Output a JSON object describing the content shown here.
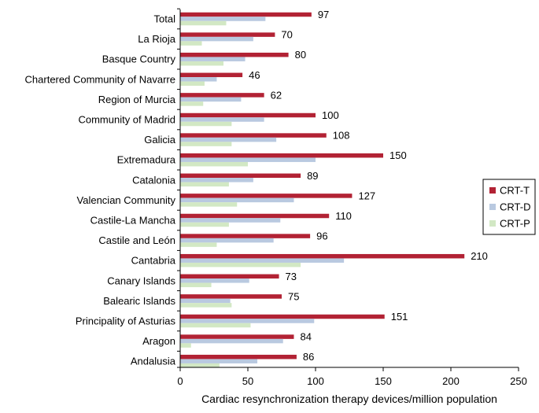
{
  "chart_data": {
    "type": "bar",
    "orientation": "horizontal",
    "categories": [
      "Total",
      "La Rioja",
      "Basque Country",
      "Chartered Community of Navarre",
      "Region of Murcia",
      "Community of Madrid",
      "Galicia",
      "Extremadura",
      "Catalonia",
      "Valencian Community",
      "Castile-La Mancha",
      "Castile and León",
      "Cantabria",
      "Canary Islands",
      "Balearic Islands",
      "Principality of Asturias",
      "Aragon",
      "Andalusia"
    ],
    "series": [
      {
        "name": "CRT-T",
        "color": "#b22234",
        "values": [
          97,
          70,
          80,
          46,
          62,
          100,
          108,
          150,
          89,
          127,
          110,
          96,
          210,
          73,
          75,
          151,
          84,
          86
        ]
      },
      {
        "name": "CRT-D",
        "color": "#b9c9e0",
        "values": [
          63,
          54,
          48,
          27,
          45,
          62,
          71,
          100,
          54,
          84,
          74,
          69,
          121,
          51,
          37,
          99,
          76,
          57
        ]
      },
      {
        "name": "CRT-P",
        "color": "#d2e8c4",
        "values": [
          34,
          16,
          32,
          18,
          17,
          38,
          38,
          50,
          36,
          42,
          36,
          27,
          89,
          23,
          38,
          52,
          8,
          29
        ]
      }
    ],
    "data_labels_series": "CRT-T",
    "title": "",
    "xlabel": "Cardiac resynchronization therapy devices/million population",
    "ylabel": "",
    "xlim": [
      0,
      250
    ],
    "xticks": [
      0,
      50,
      100,
      150,
      200,
      250
    ],
    "grid": false,
    "legend_position": "right"
  }
}
